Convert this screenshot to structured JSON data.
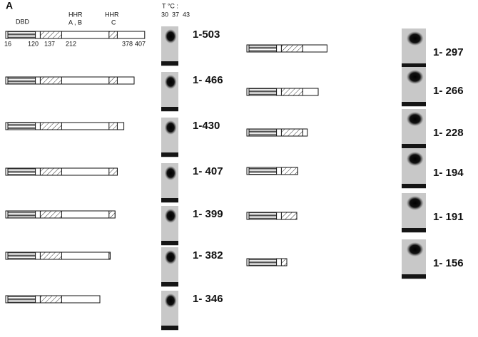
{
  "panel_label": "A",
  "header": {
    "dbd": "DBD",
    "hhr_ab_title": "HHR",
    "hhr_ab_sub": "A , B",
    "hhr_c_title": "HHR",
    "hhr_c_sub": "C",
    "positions": [
      "16",
      "120",
      "137",
      "212",
      "378",
      "407"
    ]
  },
  "temperature": {
    "title": "T °C :",
    "values": "30  37  43"
  },
  "constructs_left": [
    "1-503",
    "1- 466",
    "1-430",
    "1- 407",
    "1- 399",
    "1- 382",
    "1- 346"
  ],
  "constructs_right": [
    "1- 297",
    "1- 266",
    "1- 228",
    "1- 194",
    "1- 191",
    "1- 156"
  ]
}
